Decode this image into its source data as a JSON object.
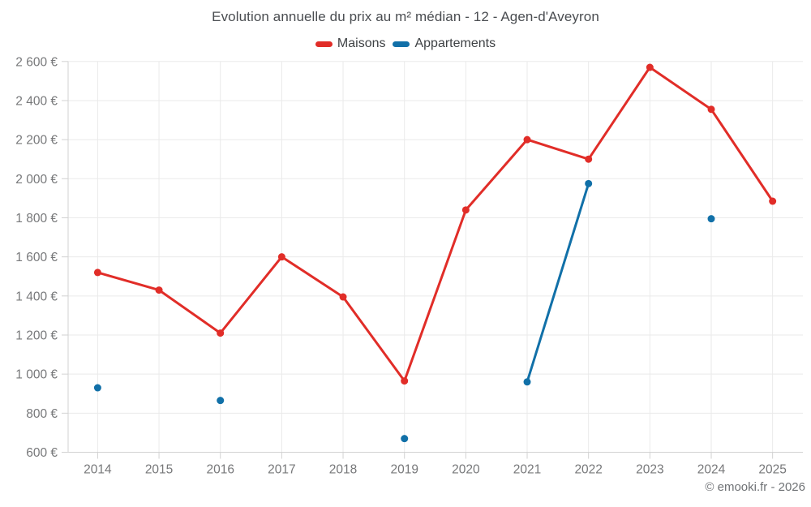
{
  "header": {
    "title": "Evolution annuelle du prix au m² médian - 12 - Agen-d'Aveyron"
  },
  "footer": {
    "credit": "© emooki.fr - 2026"
  },
  "chart_data": {
    "type": "line",
    "title": "Evolution annuelle du prix au m² médian - 12 - Agen-d'Aveyron",
    "categories": [
      "2014",
      "2015",
      "2016",
      "2017",
      "2018",
      "2019",
      "2020",
      "2021",
      "2022",
      "2023",
      "2024",
      "2025"
    ],
    "series": [
      {
        "name": "Maisons",
        "color": "#e12d28",
        "values": [
          1520,
          1430,
          1210,
          1600,
          1395,
          965,
          1840,
          2200,
          2100,
          2570,
          2355,
          1885
        ]
      },
      {
        "name": "Appartements",
        "color": "#1170a8",
        "values": [
          930,
          null,
          865,
          null,
          null,
          670,
          null,
          960,
          1975,
          null,
          1795,
          null
        ]
      }
    ],
    "xlabel": "",
    "ylabel": "",
    "ylim": [
      600,
      2600
    ],
    "ytick_step": 200,
    "y_ticks": [
      "600 €",
      "800 €",
      "1 000 €",
      "1 200 €",
      "1 400 €",
      "1 600 €",
      "1 800 €",
      "2 000 €",
      "2 200 €",
      "2 400 €",
      "2 600 €"
    ],
    "grid": true,
    "legend_position": "top",
    "grid_color": "#eaeaea",
    "axis_color": "#d2d2d2",
    "tick_label_color": "#77787a"
  }
}
